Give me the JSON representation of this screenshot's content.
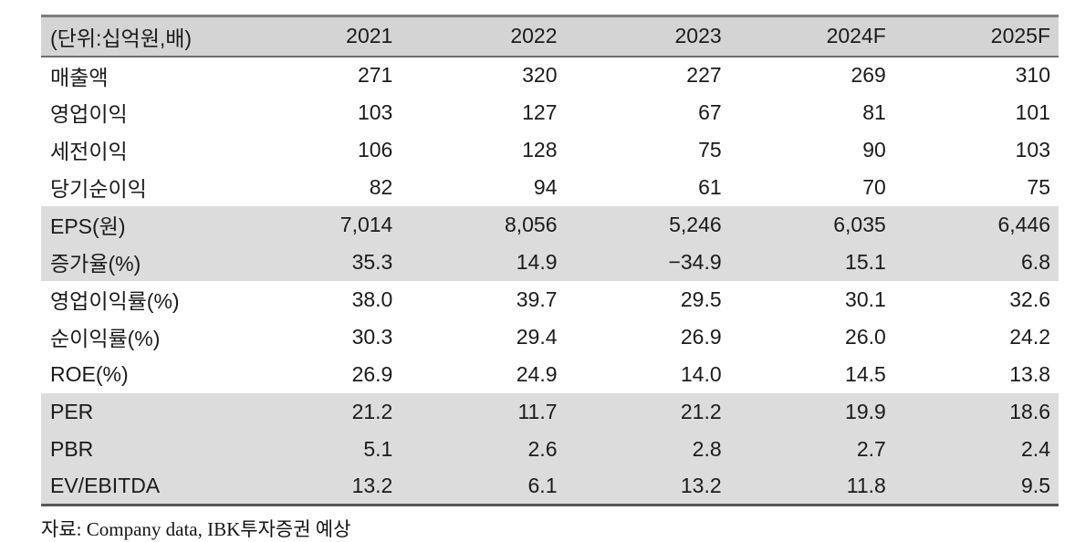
{
  "table": {
    "unit_header": "(단위:십억원,배)",
    "columns": [
      "2021",
      "2022",
      "2023",
      "2024F",
      "2025F"
    ],
    "rows": [
      {
        "label": "매출액",
        "values": [
          "271",
          "320",
          "227",
          "269",
          "310"
        ],
        "shaded": false
      },
      {
        "label": "영업이익",
        "values": [
          "103",
          "127",
          "67",
          "81",
          "101"
        ],
        "shaded": false
      },
      {
        "label": "세전이익",
        "values": [
          "106",
          "128",
          "75",
          "90",
          "103"
        ],
        "shaded": false
      },
      {
        "label": "당기순이익",
        "values": [
          "82",
          "94",
          "61",
          "70",
          "75"
        ],
        "shaded": false
      },
      {
        "label": "EPS(원)",
        "values": [
          "7,014",
          "8,056",
          "5,246",
          "6,035",
          "6,446"
        ],
        "shaded": true
      },
      {
        "label": "증가율(%)",
        "values": [
          "35.3",
          "14.9",
          "−34.9",
          "15.1",
          "6.8"
        ],
        "shaded": true
      },
      {
        "label": "영업이익률(%)",
        "values": [
          "38.0",
          "39.7",
          "29.5",
          "30.1",
          "32.6"
        ],
        "shaded": false
      },
      {
        "label": "순이익률(%)",
        "values": [
          "30.3",
          "29.4",
          "26.9",
          "26.0",
          "24.2"
        ],
        "shaded": false
      },
      {
        "label": "ROE(%)",
        "values": [
          "26.9",
          "24.9",
          "14.0",
          "14.5",
          "13.8"
        ],
        "shaded": false
      },
      {
        "label": "PER",
        "values": [
          "21.2",
          "11.7",
          "21.2",
          "19.9",
          "18.6"
        ],
        "shaded": true
      },
      {
        "label": "PBR",
        "values": [
          "5.1",
          "2.6",
          "2.8",
          "2.7",
          "2.4"
        ],
        "shaded": true
      },
      {
        "label": "EV/EBITDA",
        "values": [
          "13.2",
          "6.1",
          "13.2",
          "11.8",
          "9.5"
        ],
        "shaded": true
      }
    ]
  },
  "footer": {
    "source": "자료: Company data, IBK투자증권 예상"
  },
  "colors": {
    "header_band": "#d4d4d4",
    "shaded_row": "#dcdcdc",
    "border_top": "#7d7d7f",
    "border_bottom": "#565658",
    "text": "#1b1b1b"
  }
}
